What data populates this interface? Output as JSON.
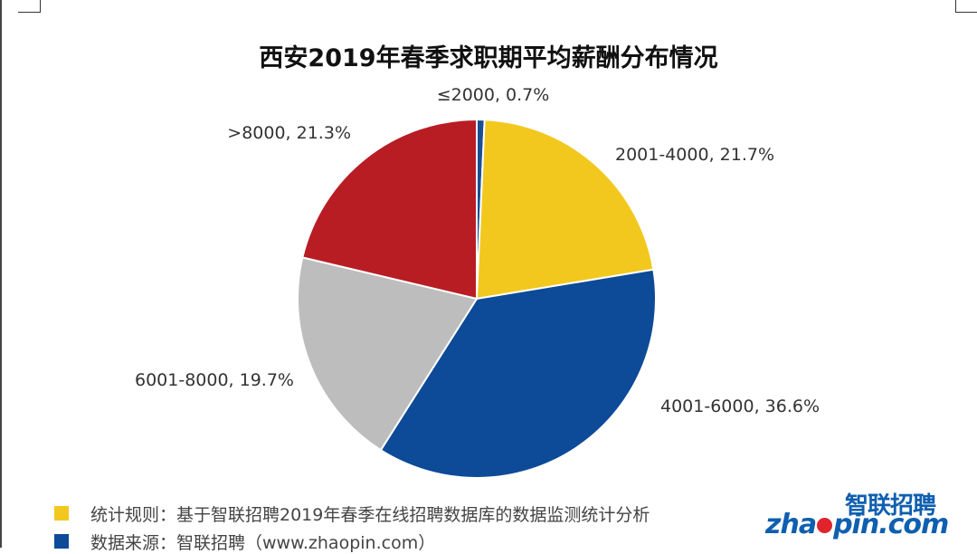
{
  "chart_data": {
    "type": "pie",
    "title": "西安2019年春季求职期平均薪酬分布情况",
    "slices": [
      {
        "label": "≤2000, 0.7%",
        "value": 0.7,
        "color": "#1a4f96"
      },
      {
        "label": "2001-4000, 21.7%",
        "value": 21.7,
        "color": "#f2c81f"
      },
      {
        "label": "4001-6000, 36.6%",
        "value": 36.6,
        "color": "#0d4a98"
      },
      {
        "label": "6001-8000, 19.7%",
        "value": 19.7,
        "color": "#bdbdbd"
      },
      {
        "label": ">8000, 21.3%",
        "value": 21.3,
        "color": "#b81d24"
      }
    ]
  },
  "footnotes": {
    "rule": {
      "text": "统计规则：基于智联招聘2019年春季在线招聘数据库的数据监测统计分析",
      "color": "#f2c81f"
    },
    "source": {
      "text": "数据来源：智联招聘（www.zhaopin.com）",
      "color": "#0d4a98"
    }
  },
  "logo": {
    "cn": "智联招聘",
    "en_prefix": "zha",
    "en_suffix": "pin.com"
  }
}
